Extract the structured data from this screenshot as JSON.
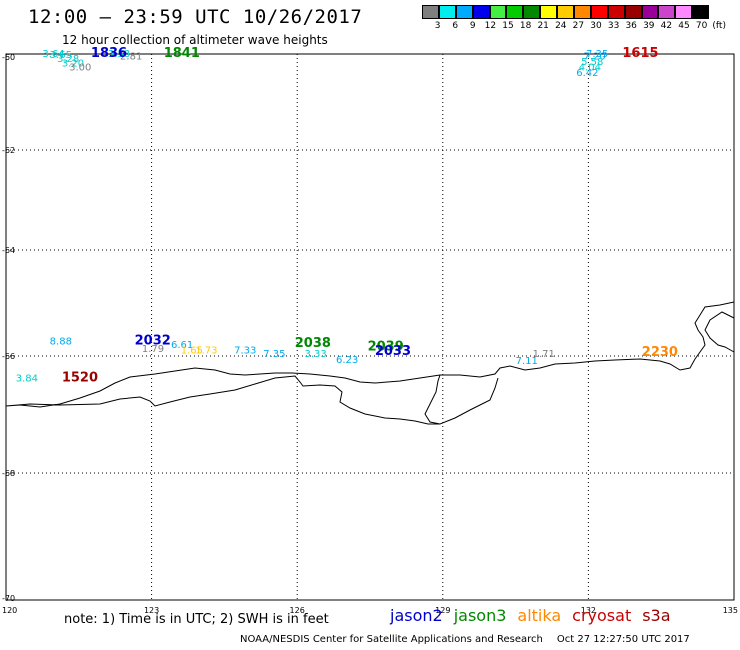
{
  "header": {
    "title": "12:00 – 23:59 UTC 10/26/2017",
    "subtitle": "12 hour collection of altimeter wave heights"
  },
  "legend": {
    "colors": [
      "#7f7f7f",
      "#00eeee",
      "#00aaff",
      "#0000ee",
      "#44ee44",
      "#00cc00",
      "#008800",
      "#ffff00",
      "#ffcc00",
      "#ff8800",
      "#ff0000",
      "#cc0000",
      "#990000",
      "#990099",
      "#cc44cc",
      "#ff88ff",
      "#000000"
    ],
    "labels": [
      "3",
      "6",
      "9",
      "12",
      "15",
      "18",
      "21",
      "24",
      "27",
      "30",
      "33",
      "36",
      "39",
      "42",
      "45",
      "70",
      "(ft)"
    ]
  },
  "axes": {
    "x_ticks": [
      "120",
      "123",
      "126",
      "129",
      "132",
      "135"
    ],
    "y_ticks": [
      "-60",
      "-62",
      "-64",
      "-66",
      "-68",
      "-70"
    ]
  },
  "observations": [
    {
      "text": "3.64",
      "lon": 120.75,
      "lat": -59.93,
      "color": "#00cccc"
    },
    {
      "text": "3.65",
      "lon": 120.9,
      "lat": -60.02,
      "color": "#00cccc"
    },
    {
      "text": "3.28",
      "lon": 121.05,
      "lat": -60.11,
      "color": "#00cccc"
    },
    {
      "text": "3.20",
      "lon": 121.15,
      "lat": -60.2,
      "color": "#00cccc"
    },
    {
      "text": "3.00",
      "lon": 121.3,
      "lat": -60.29,
      "color": "#7f7f7f"
    },
    {
      "text": "3.58",
      "lon": 122.1,
      "lat": -59.93,
      "color": "#00cccc"
    },
    {
      "text": "2.81",
      "lon": 122.35,
      "lat": -60.05,
      "color": "#7f7f7f"
    },
    {
      "text": "7.35",
      "lon": 131.95,
      "lat": -59.93,
      "color": "#00aaee"
    },
    {
      "text": "7.20",
      "lon": 131.9,
      "lat": -60.05,
      "color": "#00aaee"
    },
    {
      "text": "5.58",
      "lon": 131.85,
      "lat": -60.17,
      "color": "#00cccc"
    },
    {
      "text": "4.04",
      "lon": 131.8,
      "lat": -60.29,
      "color": "#00cccc"
    },
    {
      "text": "6.42",
      "lon": 131.75,
      "lat": -60.41,
      "color": "#00aaee"
    },
    {
      "text": "8.88",
      "lon": 120.9,
      "lat": -65.78,
      "color": "#00aaee"
    },
    {
      "text": "3.84",
      "lon": 120.2,
      "lat": -66.44,
      "color": "#00cccc"
    },
    {
      "text": "1.79",
      "lon": 122.8,
      "lat": -65.92,
      "color": "#7f7f7f"
    },
    {
      "text": "6.61",
      "lon": 123.4,
      "lat": -65.85,
      "color": "#00aaee"
    },
    {
      "text": "1.65",
      "lon": 123.6,
      "lat": -65.95,
      "color": "#ffcc00"
    },
    {
      "text": "1.73",
      "lon": 123.9,
      "lat": -65.95,
      "color": "#ffcc00"
    },
    {
      "text": "7.33",
      "lon": 124.7,
      "lat": -65.95,
      "color": "#00aaee"
    },
    {
      "text": "7.35",
      "lon": 125.3,
      "lat": -66.02,
      "color": "#00aaee"
    },
    {
      "text": "3.33",
      "lon": 126.15,
      "lat": -66.02,
      "color": "#00cccc"
    },
    {
      "text": "6.23",
      "lon": 126.8,
      "lat": -66.12,
      "color": "#00aaee"
    },
    {
      "text": "7.11",
      "lon": 130.5,
      "lat": -66.14,
      "color": "#00aaee"
    },
    {
      "text": "1.71",
      "lon": 130.85,
      "lat": -66.02,
      "color": "#7f7f7f"
    }
  ],
  "passes": [
    {
      "time": "1836",
      "lon": 121.75,
      "lat": -59.93,
      "color": "#0000cc"
    },
    {
      "time": "1841",
      "lon": 123.25,
      "lat": -59.9,
      "color": "#008800"
    },
    {
      "time": "1615",
      "lon": 132.7,
      "lat": -59.93,
      "color": "#cc0000"
    },
    {
      "time": "2032",
      "lon": 122.65,
      "lat": -65.78,
      "color": "#0000cc"
    },
    {
      "time": "1520",
      "lon": 121.15,
      "lat": -66.44,
      "color": "#990000"
    },
    {
      "time": "2038",
      "lon": 125.95,
      "lat": -65.83,
      "color": "#008800"
    },
    {
      "time": "2039",
      "lon": 127.45,
      "lat": -65.9,
      "color": "#008800"
    },
    {
      "time": "2033",
      "lon": 127.6,
      "lat": -65.98,
      "color": "#0000cc"
    },
    {
      "time": "2230",
      "lon": 133.1,
      "lat": -66.0,
      "color": "#ff8800"
    }
  ],
  "footer": {
    "note": "note: 1) Time is in UTC; 2) SWH is in feet",
    "satellites": [
      {
        "name": "jason2",
        "color": "#0000cc"
      },
      {
        "name": "jason3",
        "color": "#008800"
      },
      {
        "name": "altika",
        "color": "#ff8800"
      },
      {
        "name": "cryosat",
        "color": "#cc0000"
      },
      {
        "name": "s3a",
        "color": "#990000"
      }
    ],
    "credit": "NOAA/NESDIS Center for Satellite Applications and Research",
    "timestamp": "Oct 27 12:27:50 UTC 2017"
  }
}
